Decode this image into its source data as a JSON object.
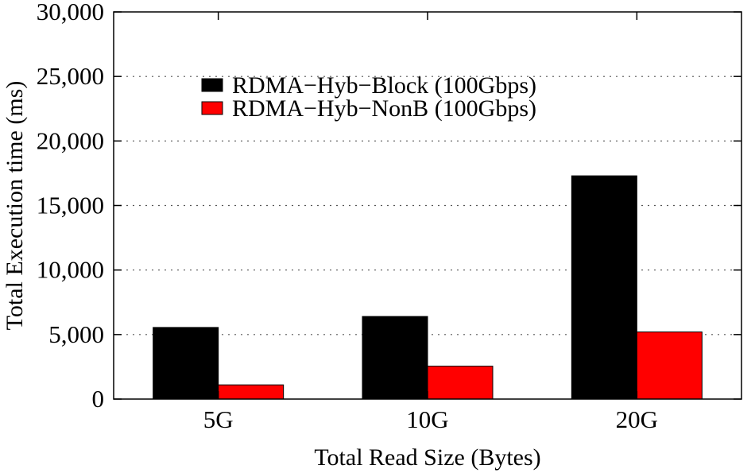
{
  "chart_data": {
    "type": "bar",
    "title": "",
    "xlabel": "Total Read Size (Bytes)",
    "ylabel": "Total Execution time (ms)",
    "categories": [
      "5G",
      "10G",
      "20G"
    ],
    "ylim": [
      0,
      30000
    ],
    "yticks": [
      0,
      5000,
      10000,
      15000,
      20000,
      25000,
      30000
    ],
    "ytick_labels": [
      "0",
      "5,000",
      "10,000",
      "15,000",
      "20,000",
      "25,000",
      "30,000"
    ],
    "grid": "horizontal dotted",
    "legend_position": "top-left",
    "series": [
      {
        "name": "RDMA−Hyb−Block (100Gbps)",
        "color": "#000000",
        "values": [
          5550,
          6400,
          17300
        ]
      },
      {
        "name": "RDMA−Hyb−NonB (100Gbps)",
        "color": "#ff0000",
        "values": [
          1100,
          2550,
          5200
        ]
      }
    ]
  }
}
